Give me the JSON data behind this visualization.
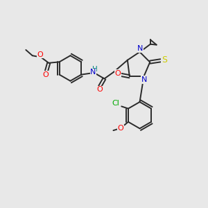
{
  "bg_color": "#e8e8e8",
  "bond_color": "#2a2a2a",
  "colors": {
    "O": "#ff0000",
    "N": "#0000cc",
    "S": "#cccc00",
    "Cl": "#00aa00",
    "H": "#008080",
    "C": "#2a2a2a"
  },
  "lw": 1.4,
  "figsize": [
    3.0,
    3.0
  ],
  "dpi": 100
}
